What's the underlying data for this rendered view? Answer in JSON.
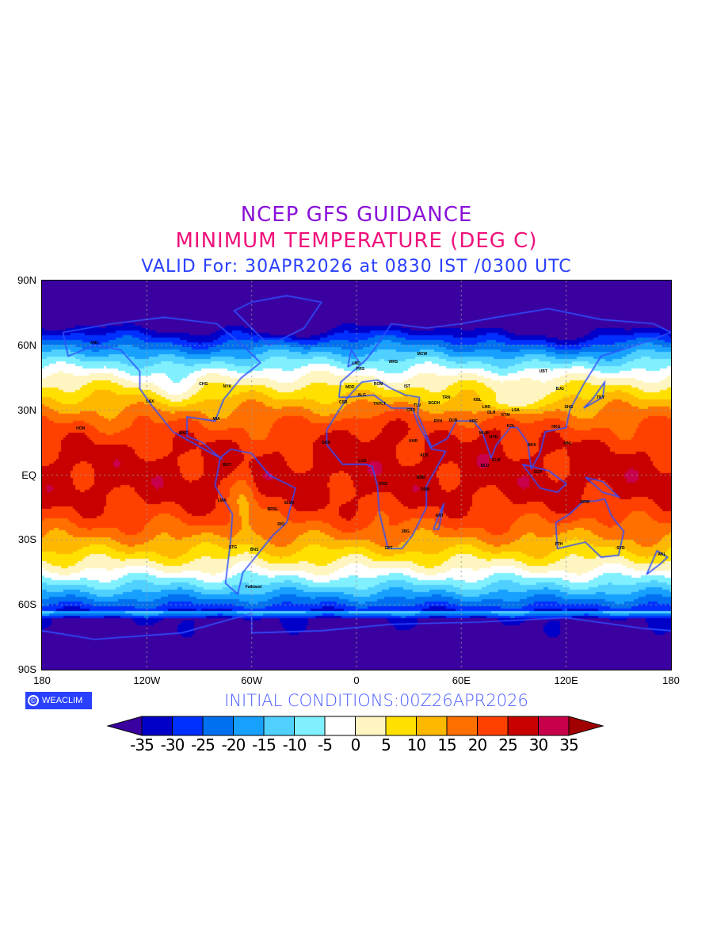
{
  "header": {
    "title": "NCEP GFS GUIDANCE",
    "subtitle": "MINIMUM TEMPERATURE (DEG C)",
    "valid": "VALID For: 30APR2026 at 0830 IST /0300 UTC"
  },
  "map": {
    "lat_labels": [
      "90N",
      "60N",
      "30N",
      "EQ",
      "30S",
      "60S",
      "90S"
    ],
    "lat_values": [
      90,
      60,
      30,
      0,
      -30,
      -60,
      -90
    ],
    "lon_labels": [
      "180",
      "120W",
      "60W",
      "0",
      "60E",
      "120E",
      "180"
    ],
    "lon_values": [
      -180,
      -120,
      -60,
      0,
      60,
      120,
      180
    ],
    "stations": [
      {
        "name": "MCW",
        "lon": 37.6,
        "lat": 55.8
      },
      {
        "name": "LND",
        "lon": -0.1,
        "lat": 51.5
      },
      {
        "name": "PRS",
        "lon": 2.3,
        "lat": 48.9
      },
      {
        "name": "WRS",
        "lon": 21,
        "lat": 52.2
      },
      {
        "name": "ROM",
        "lon": 12.5,
        "lat": 41.9
      },
      {
        "name": "IST",
        "lon": 29,
        "lat": 41
      },
      {
        "name": "MDD",
        "lon": -3.7,
        "lat": 40.4
      },
      {
        "name": "ALG",
        "lon": 3,
        "lat": 36.7
      },
      {
        "name": "CSB",
        "lon": -7.6,
        "lat": 33.6
      },
      {
        "name": "TRPLT",
        "lon": 13.2,
        "lat": 32.9
      },
      {
        "name": "TLV",
        "lon": 34.8,
        "lat": 32
      },
      {
        "name": "CRO",
        "lon": 31.2,
        "lat": 30
      },
      {
        "name": "TRN",
        "lon": 51.4,
        "lat": 35.7
      },
      {
        "name": "BGDH",
        "lon": 44.4,
        "lat": 33.3
      },
      {
        "name": "RYH",
        "lon": 46.7,
        "lat": 24.7
      },
      {
        "name": "DUB",
        "lon": 55.3,
        "lat": 25.2
      },
      {
        "name": "KRC",
        "lon": 67,
        "lat": 24.9
      },
      {
        "name": "DLH",
        "lon": 77.2,
        "lat": 28.6
      },
      {
        "name": "KBL",
        "lon": 69.2,
        "lat": 34.5
      },
      {
        "name": "LHR",
        "lon": 74.3,
        "lat": 31.5
      },
      {
        "name": "KTM",
        "lon": 85.3,
        "lat": 27.7
      },
      {
        "name": "LSA",
        "lon": 91.1,
        "lat": 29.7
      },
      {
        "name": "KOL",
        "lon": 88.4,
        "lat": 22.6
      },
      {
        "name": "MUM",
        "lon": 72.9,
        "lat": 19.1
      },
      {
        "name": "HYD",
        "lon": 78.5,
        "lat": 17.4
      },
      {
        "name": "CLM",
        "lon": 79.9,
        "lat": 6.9
      },
      {
        "name": "MLD",
        "lon": 73.5,
        "lat": 4.2
      },
      {
        "name": "UBT",
        "lon": 106.9,
        "lat": 47.9
      },
      {
        "name": "BJG",
        "lon": 116.4,
        "lat": 39.9
      },
      {
        "name": "SHG",
        "lon": 121.5,
        "lat": 31.2
      },
      {
        "name": "TKY",
        "lon": 139.7,
        "lat": 35.7
      },
      {
        "name": "HKG",
        "lon": 114.2,
        "lat": 22.3
      },
      {
        "name": "MNL",
        "lon": 121,
        "lat": 14.6
      },
      {
        "name": "BKK",
        "lon": 100.5,
        "lat": 13.8
      },
      {
        "name": "SGP",
        "lon": 103.8,
        "lat": 1.3
      },
      {
        "name": "DRW",
        "lon": 130.8,
        "lat": -12.5
      },
      {
        "name": "PTH",
        "lon": 115.9,
        "lat": -31.9
      },
      {
        "name": "SYD",
        "lon": 151.2,
        "lat": -33.9
      },
      {
        "name": "AKL",
        "lon": 174.8,
        "lat": -36.8
      },
      {
        "name": "NRB",
        "lon": 36.8,
        "lat": -1.3
      },
      {
        "name": "ADS",
        "lon": 38.7,
        "lat": 9
      },
      {
        "name": "KHR",
        "lon": 32.5,
        "lat": 15.6
      },
      {
        "name": "LGS",
        "lon": 3.4,
        "lat": 6.5
      },
      {
        "name": "DKR",
        "lon": -17.4,
        "lat": 14.7
      },
      {
        "name": "KNS",
        "lon": 15.3,
        "lat": -4.3
      },
      {
        "name": "JBG",
        "lon": 28,
        "lat": -26.2
      },
      {
        "name": "CPT",
        "lon": 18.4,
        "lat": -33.9
      },
      {
        "name": "ANT",
        "lon": 47.5,
        "lat": -18.9
      },
      {
        "name": "DSM",
        "lon": 39.3,
        "lat": -6.8
      },
      {
        "name": "NYK",
        "lon": -74,
        "lat": 40.7
      },
      {
        "name": "CHG",
        "lon": -87.6,
        "lat": 41.9
      },
      {
        "name": "LAX",
        "lon": -118.2,
        "lat": 34
      },
      {
        "name": "MIA",
        "lon": -80.2,
        "lat": 25.8
      },
      {
        "name": "MXC",
        "lon": -99.1,
        "lat": 19.4
      },
      {
        "name": "HON",
        "lon": -157.9,
        "lat": 21.3
      },
      {
        "name": "ANC",
        "lon": -149.9,
        "lat": 61.2
      },
      {
        "name": "BGT",
        "lon": -74.1,
        "lat": 4.7
      },
      {
        "name": "LMA",
        "lon": -77,
        "lat": -12
      },
      {
        "name": "BRSL",
        "lon": -47.9,
        "lat": -15.8
      },
      {
        "name": "RIO",
        "lon": -43.2,
        "lat": -22.9
      },
      {
        "name": "SLVD",
        "lon": -38.5,
        "lat": -13
      },
      {
        "name": "BNS",
        "lon": -58.4,
        "lat": -34.6
      },
      {
        "name": "STG",
        "lon": -70.7,
        "lat": -33.4
      },
      {
        "name": "Falkland",
        "lon": -59,
        "lat": -51.7
      }
    ]
  },
  "footer": {
    "logo_text": "WEACLIM",
    "logo_symbol": "©",
    "initial_conditions": "INITIAL  CONDITIONS:00Z26APR2026"
  },
  "colorbar": {
    "labels": [
      "-35",
      "-30",
      "-25",
      "-20",
      "-15",
      "-10",
      "-5",
      "0",
      "5",
      "10",
      "15",
      "20",
      "25",
      "30",
      "35"
    ],
    "levels": [
      -35,
      -30,
      -25,
      -20,
      -15,
      -10,
      -5,
      0,
      5,
      10,
      15,
      20,
      25,
      30,
      35
    ],
    "colors": [
      "#3a00a0",
      "#0000c8",
      "#0030ff",
      "#0070f0",
      "#18a0ff",
      "#50d0ff",
      "#80f0ff",
      "#ffffff",
      "#fff5c0",
      "#ffe000",
      "#ffb800",
      "#ff7000",
      "#ff4000",
      "#c80000",
      "#c8004c",
      "#a00000"
    ]
  }
}
